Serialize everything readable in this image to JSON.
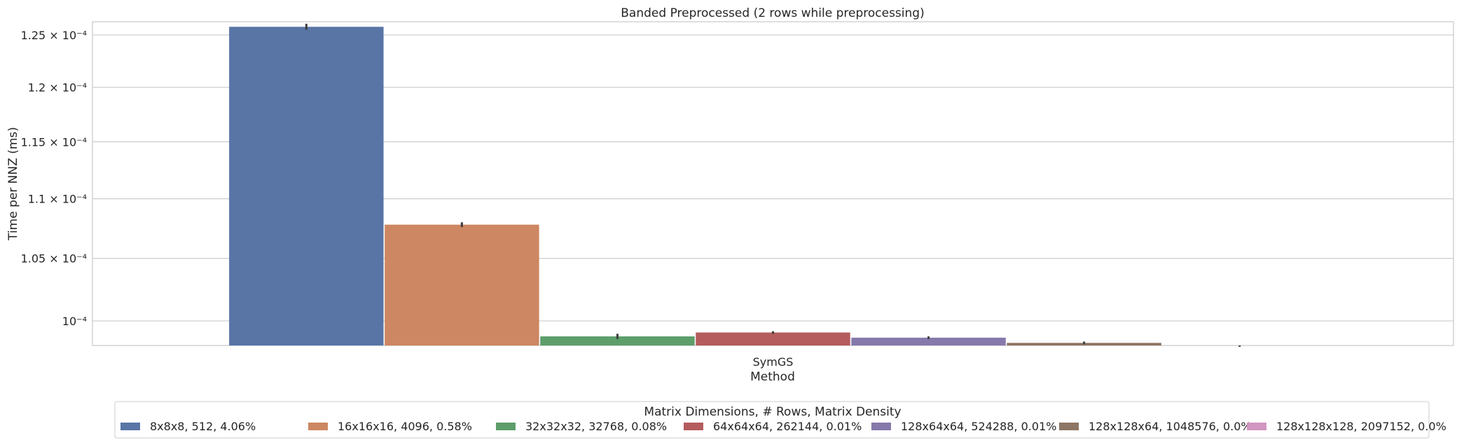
{
  "chart_data": {
    "type": "bar",
    "title": "Banded Preprocessed (2 rows while preprocessing)",
    "xlabel": "Method",
    "ylabel": "Time per NNZ (ms)",
    "categories": [
      "SymGS"
    ],
    "yscale": "log",
    "ylim": [
      9.81e-05,
      0.0001263
    ],
    "yticks": [
      {
        "value": 0.0001,
        "label": "10⁻⁴"
      },
      {
        "value": 0.000105,
        "label": "1.05 × 10⁻⁴"
      },
      {
        "value": 0.00011,
        "label": "1.1 × 10⁻⁴"
      },
      {
        "value": 0.000115,
        "label": "1.15 × 10⁻⁴"
      },
      {
        "value": 0.00012,
        "label": "1.2 × 10⁻⁴"
      },
      {
        "value": 0.000125,
        "label": "1.25 × 10⁻⁴"
      }
    ],
    "grid": "y-major",
    "legend": {
      "title": "Matrix Dimensions, # Rows, Matrix Density",
      "placement": "bottom-center, below plot"
    },
    "series": [
      {
        "name": "8x8x8, 512, 4.06%",
        "color": "#5875a6",
        "values": [
          0.0001258
        ],
        "err": [
          3e-07
        ]
      },
      {
        "name": "16x16x16, 4096, 0.58%",
        "color": "#cd8762",
        "values": [
          0.0001078
        ],
        "err": [
          2e-07
        ]
      },
      {
        "name": "32x32x32, 32768, 0.08%",
        "color": "#5d9e6b",
        "values": [
          9.88e-05
        ],
        "err": [
          2e-07
        ]
      },
      {
        "name": "64x64x64, 262144, 0.01%",
        "color": "#b45c5e",
        "values": [
          9.91e-05
        ],
        "err": [
          1e-07
        ]
      },
      {
        "name": "128x64x64, 524288, 0.01%",
        "color": "#8679ab",
        "values": [
          9.87e-05
        ],
        "err": [
          1e-07
        ]
      },
      {
        "name": "128x128x64, 1048576, 0.0%",
        "color": "#8e7664",
        "values": [
          9.83e-05
        ],
        "err": [
          1e-07
        ]
      },
      {
        "name": "128x128x128, 2097152, 0.0%",
        "color": "#d196c1",
        "values": [
          9.79e-05
        ],
        "err": [
          1e-07
        ]
      }
    ]
  }
}
